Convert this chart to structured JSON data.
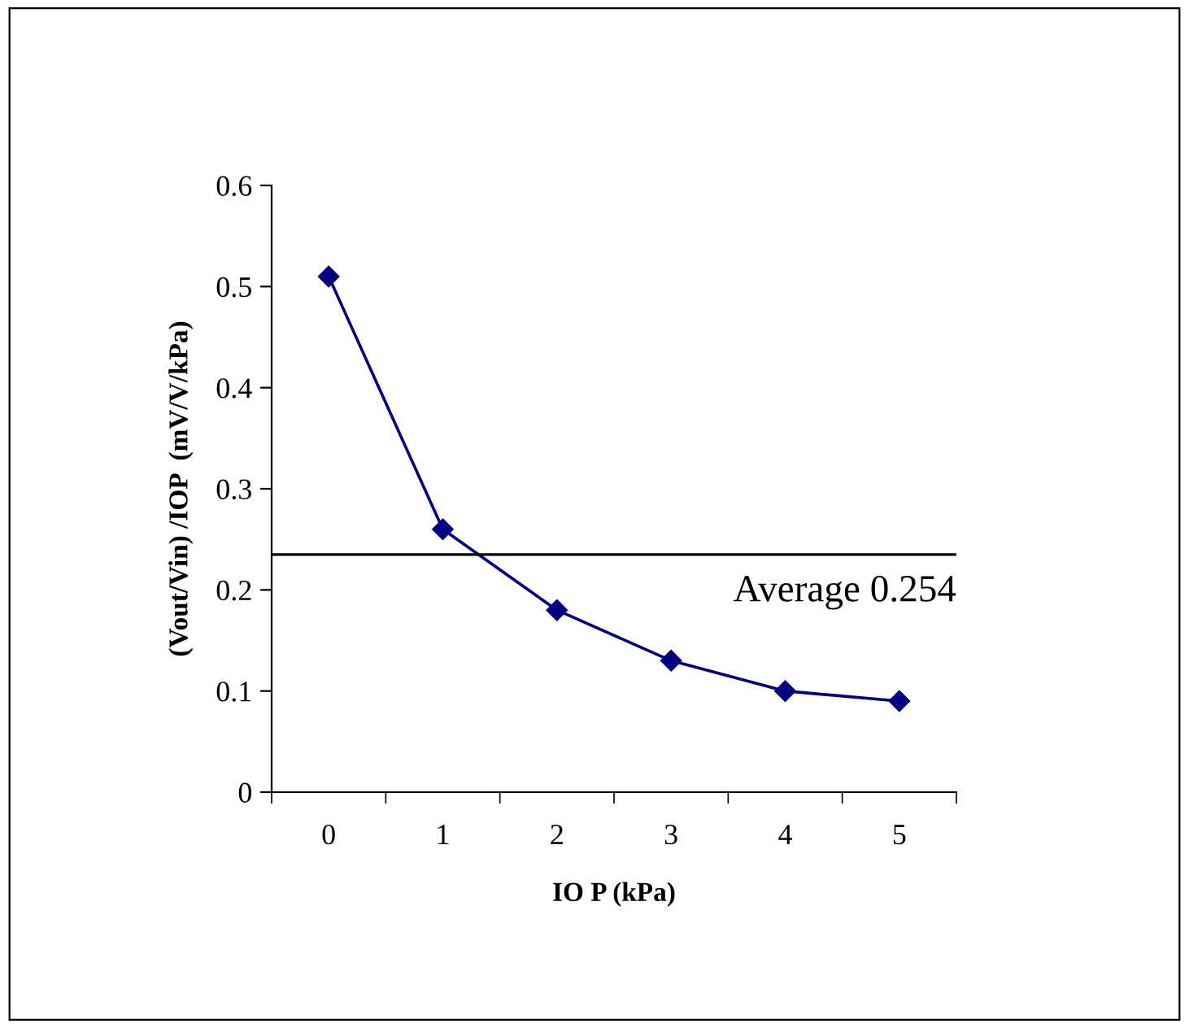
{
  "chart_data": {
    "type": "line",
    "xlabel": "IO P (kPa)",
    "ylabel": "(Vout/Vin) /IOP  (mV/V/kPa)",
    "categories": [
      "0",
      "1",
      "2",
      "3",
      "4",
      "5"
    ],
    "series": [
      {
        "color": "#000080",
        "values": [
          0.51,
          0.26,
          0.18,
          0.13,
          0.1,
          0.09
        ]
      }
    ],
    "marker": "diamond",
    "ylim": [
      0,
      0.6
    ],
    "yticks": [
      0,
      0.1,
      0.2,
      0.3,
      0.4,
      0.5,
      0.6
    ],
    "grid": false,
    "legend": false,
    "ref_lines": [
      {
        "axis": "y",
        "value": 0.235,
        "label": "Average 0.254",
        "color": "#000000"
      }
    ]
  }
}
